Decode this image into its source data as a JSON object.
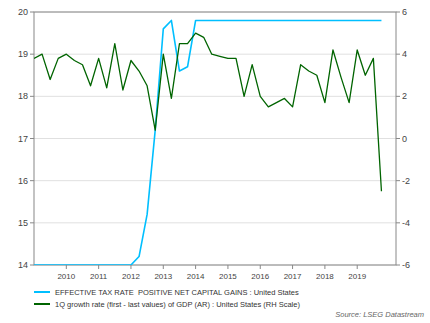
{
  "chart_data": {
    "type": "line",
    "x": [
      2009.0,
      2009.25,
      2009.5,
      2009.75,
      2010.0,
      2010.25,
      2010.5,
      2010.75,
      2011.0,
      2011.25,
      2011.5,
      2011.75,
      2012.0,
      2012.25,
      2012.5,
      2012.75,
      2013.0,
      2013.25,
      2013.5,
      2013.75,
      2014.0,
      2014.25,
      2014.5,
      2014.75,
      2015.0,
      2015.25,
      2015.5,
      2015.75,
      2016.0,
      2016.25,
      2016.5,
      2016.75,
      2017.0,
      2017.25,
      2017.5,
      2017.75,
      2018.0,
      2018.25,
      2018.5,
      2018.75,
      2019.0,
      2019.25,
      2019.5,
      2019.75
    ],
    "series": [
      {
        "name": "EFFECTIVE TAX RATE  POSITIVE NET CAPITAL GAINS : United States",
        "color": "#00bfff",
        "values": [
          14.0,
          14.0,
          14.0,
          14.0,
          14.0,
          14.0,
          14.0,
          14.0,
          14.0,
          14.0,
          14.0,
          14.0,
          14.0,
          14.2,
          15.2,
          17.2,
          19.6,
          19.8,
          18.6,
          18.7,
          19.8,
          19.8,
          19.8,
          19.8,
          19.8,
          19.8,
          19.8,
          19.8,
          19.8,
          19.8,
          19.8,
          19.8,
          19.8,
          19.8,
          19.8,
          19.8,
          19.8,
          19.8,
          19.8,
          19.8,
          19.8,
          19.8,
          19.8,
          19.8
        ]
      },
      {
        "name": "1Q growth rate (first - last values) of GDP (AR) : United States (RH Scale)",
        "color": "#006400",
        "axis": "y2",
        "values": [
          3.8,
          4.0,
          2.8,
          3.8,
          4.0,
          3.7,
          3.5,
          2.5,
          3.8,
          2.4,
          4.5,
          2.3,
          3.7,
          3.2,
          2.5,
          0.4,
          4.0,
          1.9,
          4.5,
          4.5,
          5.0,
          4.8,
          4.0,
          3.9,
          3.8,
          3.8,
          2.0,
          3.5,
          2.0,
          1.5,
          1.7,
          1.9,
          1.5,
          3.5,
          3.2,
          3.0,
          1.7,
          4.2,
          2.9,
          1.7,
          4.2,
          3.0,
          3.8,
          -2.5
        ]
      }
    ],
    "xlim": [
      2009.0,
      2020.2
    ],
    "xticks": [
      2010,
      2011,
      2012,
      2013,
      2014,
      2015,
      2016,
      2017,
      2018,
      2019
    ],
    "ylim": [
      14,
      20
    ],
    "yticks": [
      14,
      15,
      16,
      17,
      18,
      19,
      20
    ],
    "y2lim": [
      -6,
      6
    ],
    "y2ticks": [
      -6,
      -4,
      -2,
      0,
      2,
      4,
      6
    ],
    "grid": true,
    "legend": "bottom",
    "annotations": [
      "Source: LSEG Datastream"
    ]
  }
}
